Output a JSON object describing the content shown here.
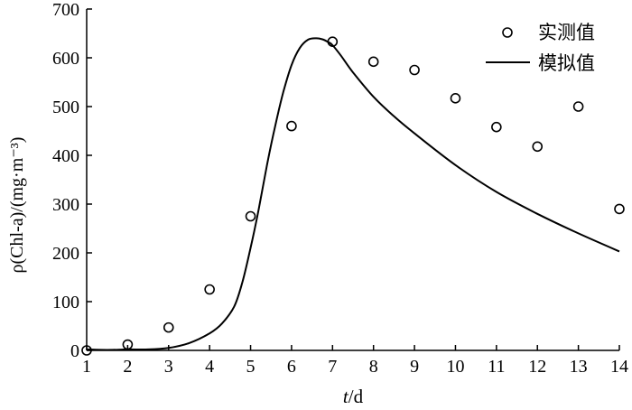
{
  "chart_data": {
    "type": "line",
    "xlabel_var": "t",
    "xlabel_unit": "/d",
    "ylabel": "ρ(Chl-a)/(mg·m⁻³)",
    "xlim": [
      1,
      14
    ],
    "ylim": [
      0,
      700
    ],
    "x_ticks": [
      1,
      2,
      3,
      4,
      5,
      6,
      7,
      8,
      9,
      10,
      11,
      12,
      13,
      14
    ],
    "y_ticks": [
      0,
      100,
      200,
      300,
      400,
      500,
      600,
      700
    ],
    "grid": false,
    "legend": {
      "position": "top-right"
    },
    "series": [
      {
        "name": "实测值",
        "type": "scatter",
        "marker": "open-circle",
        "x": [
          1,
          2,
          3,
          4,
          5,
          6,
          7,
          8,
          9,
          10,
          11,
          12,
          13,
          14
        ],
        "y": [
          0,
          12,
          47,
          125,
          275,
          460,
          633,
          592,
          575,
          517,
          458,
          418,
          500,
          290
        ]
      },
      {
        "name": "模拟值",
        "type": "line",
        "x": [
          1,
          1.5,
          2,
          2.5,
          3,
          3.5,
          4,
          4.3,
          4.6,
          4.8,
          5,
          5.2,
          5.4,
          5.6,
          5.8,
          6,
          6.2,
          6.4,
          6.6,
          6.75,
          6.9,
          7,
          7.2,
          7.5,
          8,
          8.5,
          9,
          10,
          11,
          12,
          13,
          14
        ],
        "y": [
          2,
          1,
          2,
          2,
          5,
          15,
          35,
          55,
          90,
          140,
          210,
          290,
          380,
          460,
          530,
          585,
          620,
          637,
          640,
          638,
          632,
          626,
          605,
          570,
          520,
          480,
          445,
          380,
          325,
          280,
          240,
          203
        ]
      }
    ]
  }
}
